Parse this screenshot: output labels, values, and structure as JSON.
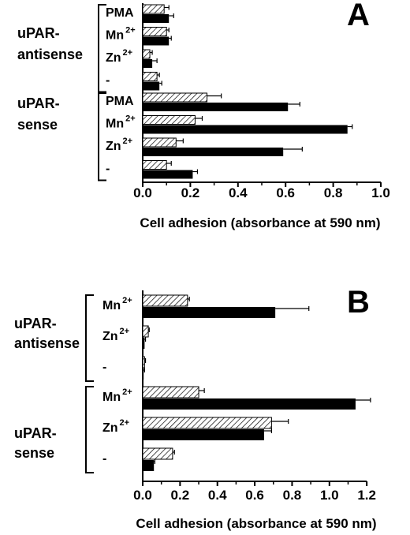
{
  "chart_data": [
    {
      "type": "bar",
      "panel": "A",
      "xlabel": "Cell adhesion (absorbance at 590 nm)",
      "xlim": [
        0,
        1.0
      ],
      "xticks": [
        "0.0",
        "0.2",
        "0.4",
        "0.6",
        "0.8",
        "1.0"
      ],
      "groups": [
        {
          "label": [
            "uPAR-",
            "antisense"
          ],
          "categories": [
            {
              "label": "PMA",
              "sup": "",
              "hatched": 0.09,
              "hatched_err": 0.02,
              "solid": 0.11,
              "solid_err": 0.02
            },
            {
              "label": "Mn",
              "sup": "2+",
              "hatched": 0.1,
              "hatched_err": 0.01,
              "solid": 0.11,
              "solid_err": 0.01
            },
            {
              "label": "Zn",
              "sup": "2+",
              "hatched": 0.03,
              "hatched_err": 0.01,
              "solid": 0.04,
              "solid_err": 0.02
            },
            {
              "label": "-",
              "sup": "",
              "hatched": 0.06,
              "hatched_err": 0.01,
              "solid": 0.07,
              "solid_err": 0.01
            }
          ]
        },
        {
          "label": [
            "uPAR-",
            "sense"
          ],
          "categories": [
            {
              "label": "PMA",
              "sup": "",
              "hatched": 0.27,
              "hatched_err": 0.06,
              "solid": 0.61,
              "solid_err": 0.05
            },
            {
              "label": "Mn",
              "sup": "2+",
              "hatched": 0.22,
              "hatched_err": 0.03,
              "solid": 0.86,
              "solid_err": 0.02
            },
            {
              "label": "Zn",
              "sup": "2+",
              "hatched": 0.14,
              "hatched_err": 0.03,
              "solid": 0.59,
              "solid_err": 0.08
            },
            {
              "label": "-",
              "sup": "",
              "hatched": 0.1,
              "hatched_err": 0.02,
              "solid": 0.21,
              "solid_err": 0.02
            }
          ]
        }
      ]
    },
    {
      "type": "bar",
      "panel": "B",
      "xlabel": "Cell adhesion (absorbance at 590 nm)",
      "xlim": [
        0,
        1.25
      ],
      "xticks": [
        "0.0",
        "0.2",
        "0.4",
        "0.6",
        "0.8",
        "1.0",
        "1.2"
      ],
      "groups": [
        {
          "label": [
            "uPAR-",
            "antisense"
          ],
          "categories": [
            {
              "label": "Mn",
              "sup": "2+",
              "hatched": 0.24,
              "hatched_err": 0.01,
              "solid": 0.71,
              "solid_err": 0.18
            },
            {
              "label": "Zn",
              "sup": "2+",
              "hatched": 0.03,
              "hatched_err": 0.005,
              "solid": 0.01,
              "solid_err": 0.005
            },
            {
              "label": "-",
              "sup": "",
              "hatched": 0.01,
              "hatched_err": 0.005,
              "solid": 0.005,
              "solid_err": 0.005
            }
          ]
        },
        {
          "label": [
            "uPAR-",
            "sense"
          ],
          "categories": [
            {
              "label": "Mn",
              "sup": "2+",
              "hatched": 0.3,
              "hatched_err": 0.03,
              "solid": 1.14,
              "solid_err": 0.08
            },
            {
              "label": "Zn",
              "sup": "2+",
              "hatched": 0.69,
              "hatched_err": 0.09,
              "solid": 0.65,
              "solid_err": 0.04
            },
            {
              "label": "-",
              "sup": "",
              "hatched": 0.16,
              "hatched_err": 0.01,
              "solid": 0.06,
              "solid_err": 0.005
            }
          ]
        }
      ]
    }
  ]
}
